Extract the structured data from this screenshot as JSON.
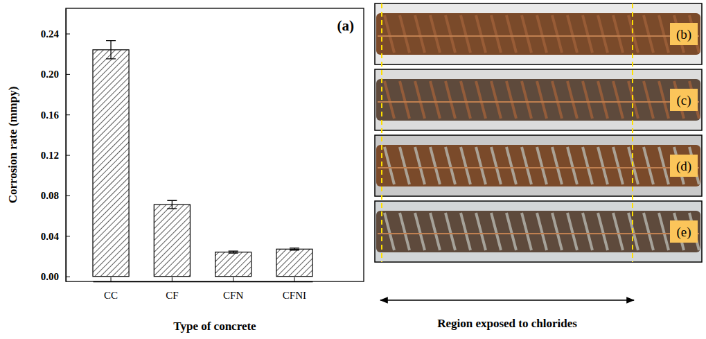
{
  "chart_data": {
    "type": "bar",
    "title": "(a)",
    "x_label": "Type of concrete",
    "y_label": "Corrosion rate (mmpy)",
    "categories": [
      "CC",
      "CF",
      "CFN",
      "CFNI"
    ],
    "values": [
      0.224,
      0.071,
      0.024,
      0.027
    ],
    "errors": [
      0.009,
      0.004,
      0.001,
      0.001
    ],
    "color": "#000000",
    "ylim": [
      -0.005,
      0.265
    ],
    "yticks": [
      {
        "value": 0,
        "label": "0.00"
      },
      {
        "value": 0.04,
        "label": "0.04"
      },
      {
        "value": 0.08,
        "label": "0.08"
      },
      {
        "value": 0.12,
        "label": "0.12"
      },
      {
        "value": 0.16,
        "label": "0.16"
      },
      {
        "value": 0.2,
        "label": "0.20"
      },
      {
        "value": 0.24,
        "label": "0.24"
      }
    ]
  },
  "photo_panels": {
    "labels": [
      "(b)",
      "(c)",
      "(d)",
      "(e)"
    ],
    "annotation": "Region exposed to chlorides"
  }
}
